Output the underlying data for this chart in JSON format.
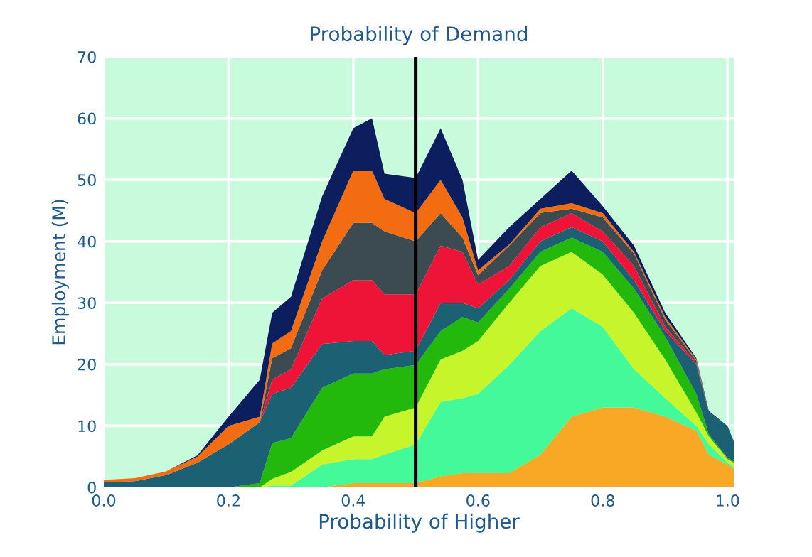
{
  "chart_data": {
    "type": "area",
    "stacked": true,
    "title": "Probability of Demand",
    "xlabel": "Probability of Higher",
    "ylabel": "Employment (M)",
    "x": [
      0,
      0.05,
      0.1,
      0.15,
      0.2,
      0.25,
      0.27,
      0.3,
      0.35,
      0.4,
      0.43,
      0.45,
      0.5,
      0.54,
      0.575,
      0.6,
      0.65,
      0.7,
      0.75,
      0.8,
      0.85,
      0.9,
      0.95,
      0.97,
      1.0,
      1.01
    ],
    "series": [
      {
        "color": "#f9a825",
        "values": [
          0,
          0,
          0,
          0,
          0,
          0,
          0,
          0,
          0,
          0.7,
          0.7,
          0.7,
          0.7,
          1.8,
          2.3,
          2.3,
          2.3,
          5.3,
          11.5,
          13,
          13,
          11.5,
          9.2,
          5.3,
          3.7,
          3
        ]
      },
      {
        "color": "#44f99a",
        "values": [
          0,
          0,
          0,
          0,
          0,
          0,
          0.3,
          0.3,
          3.7,
          3.9,
          3.9,
          4.6,
          6.3,
          12.1,
          12.2,
          12.9,
          17.6,
          20.1,
          17.6,
          13.1,
          6.2,
          3,
          0.8,
          1.7,
          0.3,
          0.3
        ]
      },
      {
        "color": "#c5f52a",
        "values": [
          0,
          0,
          0,
          0,
          0,
          0,
          1.1,
          2.2,
          2.3,
          3.7,
          3.7,
          6.2,
          6,
          6.9,
          7.7,
          8.6,
          10.1,
          10.6,
          9.2,
          8.5,
          9.2,
          6.3,
          2.2,
          1.3,
          0.6,
          0.7
        ]
      },
      {
        "color": "#22b80c",
        "values": [
          0,
          0,
          0,
          0,
          0,
          0.7,
          5.8,
          5.5,
          10.2,
          10.2,
          10.2,
          7.7,
          6.9,
          4.6,
          5.5,
          3,
          2.3,
          2.3,
          2.3,
          3.7,
          3.9,
          3.7,
          3,
          0.3,
          0.2,
          0.2
        ]
      },
      {
        "color": "#1b6173",
        "values": [
          0.8,
          1.0,
          2,
          4,
          7,
          9.9,
          8,
          8.2,
          7.1,
          5.3,
          5.3,
          2.3,
          2.3,
          4.6,
          2.3,
          2.3,
          1.4,
          1.7,
          1.7,
          1.7,
          1.4,
          0.9,
          4.8,
          3.6,
          5.2,
          3.3
        ]
      },
      {
        "color": "#ee1438",
        "values": [
          0,
          0,
          0,
          0,
          0,
          0,
          2.3,
          3,
          7.4,
          9.9,
          9.9,
          9.9,
          9.2,
          9.3,
          8.3,
          3.9,
          2.3,
          2.3,
          2.3,
          1.6,
          2.3,
          0.7,
          0.3,
          0,
          0,
          0
        ]
      },
      {
        "color": "#3c4b52",
        "values": [
          0,
          0,
          0,
          0,
          0,
          0,
          3.5,
          3.4,
          4.6,
          9.3,
          9.3,
          10.2,
          8.6,
          5.3,
          2.3,
          1.5,
          3.3,
          2.3,
          0.7,
          2.3,
          2,
          1.2,
          0.3,
          0,
          0,
          0
        ]
      },
      {
        "color": "#f36c12",
        "values": [
          0.4,
          0.5,
          0.6,
          1,
          3,
          0.9,
          2.4,
          2.8,
          4.7,
          8.5,
          8.5,
          5.3,
          4.6,
          5.4,
          3.3,
          0.8,
          0.2,
          0.7,
          0.9,
          0.7,
          0.3,
          0.4,
          0.2,
          0,
          0,
          0
        ]
      },
      {
        "color": "#0c1e5e",
        "values": [
          0,
          0,
          0,
          0.2,
          1.5,
          6,
          5,
          5.6,
          7.3,
          6.9,
          8.5,
          4.1,
          5.7,
          8.4,
          6.1,
          1.7,
          2.8,
          1.6,
          5.3,
          1.1,
          1,
          0.7,
          0.2,
          0.2,
          0,
          0
        ]
      }
    ],
    "xlim": [
      0,
      1.01
    ],
    "ylim": [
      0,
      70
    ],
    "xticks": [
      {
        "value": 0,
        "label": "0.0"
      },
      {
        "value": 0.2,
        "label": "0.2"
      },
      {
        "value": 0.4,
        "label": "0.4"
      },
      {
        "value": 0.6,
        "label": "0.6"
      },
      {
        "value": 0.8,
        "label": "0.8"
      },
      {
        "value": 1.0,
        "label": "1.0"
      }
    ],
    "yticks": [
      0,
      10,
      20,
      30,
      40,
      50,
      60,
      70
    ],
    "grid": true,
    "ref_lines": [
      {
        "axis": "x",
        "value": 0.5,
        "color": "#000000"
      }
    ]
  }
}
